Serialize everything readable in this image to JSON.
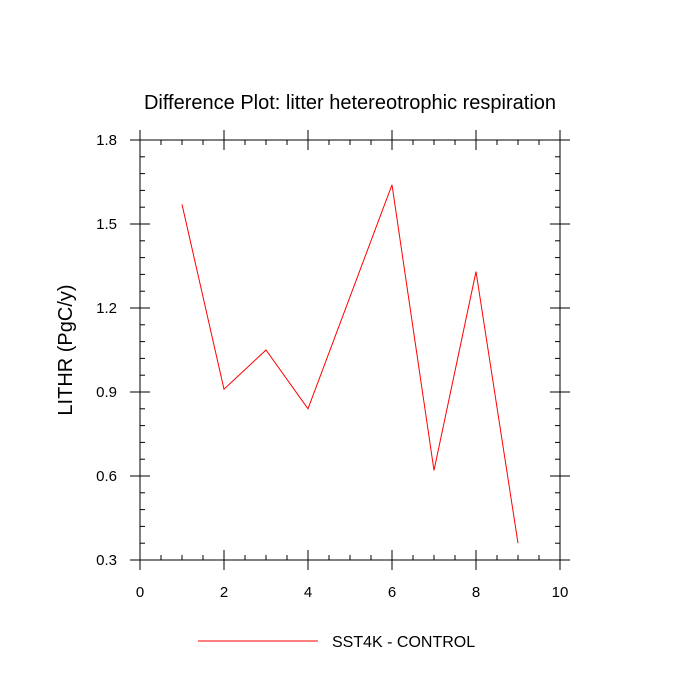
{
  "chart_data": {
    "type": "line",
    "title": "Difference Plot: litter hetereotrophic respiration",
    "xlabel": "",
    "ylabel": "LITHR  (PgC/y)",
    "xlim": [
      0,
      10
    ],
    "ylim": [
      0.3,
      1.8
    ],
    "x_ticks": [
      0,
      2,
      4,
      6,
      8,
      10
    ],
    "y_ticks": [
      0.3,
      0.6,
      0.9,
      1.2,
      1.5,
      1.8
    ],
    "x_tick_labels": [
      "0",
      "2",
      "4",
      "6",
      "8",
      "10"
    ],
    "y_tick_labels": [
      "0.3",
      "0.6",
      "0.9",
      "1.2",
      "1.5",
      "1.8"
    ],
    "x_minor_step": 0.5,
    "y_minor_step": 0.06,
    "grid": false,
    "legend_position": "bottom-center",
    "series": [
      {
        "name": "SST4K - CONTROL",
        "color": "#ff0000",
        "x": [
          1,
          2,
          3,
          4,
          5,
          6,
          7,
          8,
          9
        ],
        "values": [
          1.57,
          0.91,
          1.05,
          0.84,
          1.24,
          1.64,
          0.62,
          1.33,
          0.36
        ]
      }
    ]
  }
}
